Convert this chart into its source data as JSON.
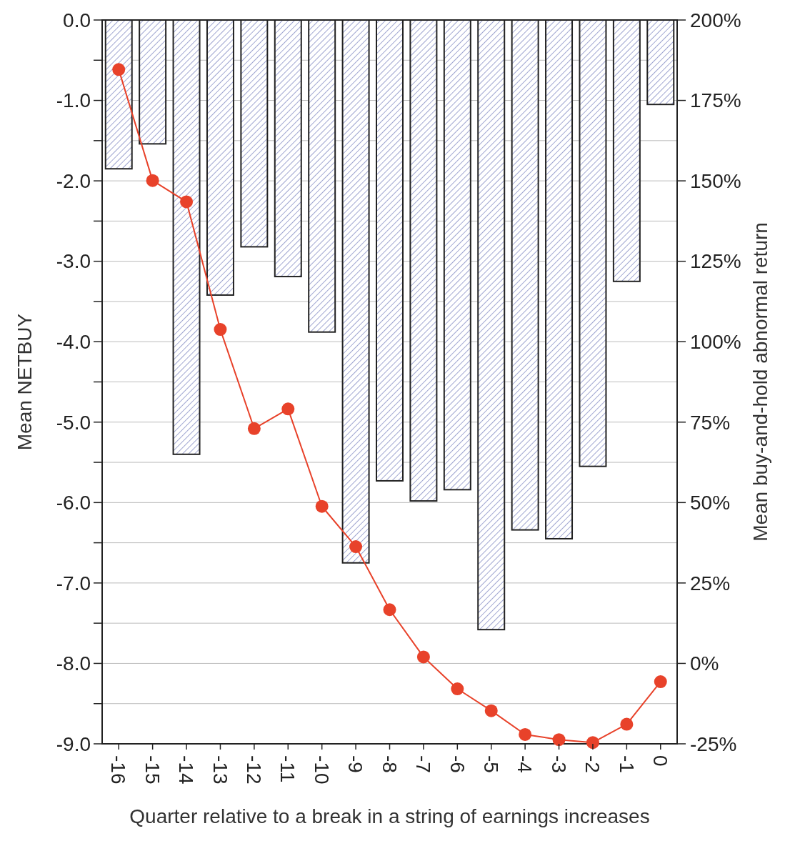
{
  "chart_data": {
    "type": "bar",
    "xlabel": "Quarter relative to a break in a string of earnings increases",
    "ylabel": "Mean NETBUY",
    "y2label": "Mean buy-and-hold abnormal return",
    "categories": [
      "-16",
      "-15",
      "-14",
      "-13",
      "-12",
      "-11",
      "-10",
      "-9",
      "-8",
      "-7",
      "-6",
      "-5",
      "-4",
      "-3",
      "-2",
      "-1",
      "0"
    ],
    "series": [
      {
        "color": "#222222",
        "values": [
          -1.85,
          -1.54,
          -5.4,
          -3.42,
          -2.82,
          -3.19,
          -3.88,
          -6.75,
          -5.73,
          -5.98,
          -5.84,
          -7.58,
          -6.34,
          -6.45,
          -5.55,
          -3.25,
          -1.05
        ]
      },
      {
        "type": "line",
        "axis": "y2",
        "color": "#e8422a",
        "values": [
          184.6,
          150.1,
          143.5,
          103.8,
          73.0,
          79.1,
          48.8,
          36.3,
          16.7,
          2.0,
          -7.9,
          -14.7,
          -22.1,
          -23.7,
          -24.6,
          -18.9,
          -5.7
        ]
      }
    ],
    "ylim": [
      -9,
      0
    ],
    "yticks": [
      {
        "value": 0,
        "label": "0.0"
      },
      {
        "value": -0.5,
        "label": null
      },
      {
        "value": -1,
        "label": "-1.0"
      },
      {
        "value": -1.5,
        "label": null
      },
      {
        "value": -2,
        "label": "-2.0"
      },
      {
        "value": -2.5,
        "label": null
      },
      {
        "value": -3,
        "label": "-3.0"
      },
      {
        "value": -3.5,
        "label": null
      },
      {
        "value": -4,
        "label": "-4.0"
      },
      {
        "value": -4.5,
        "label": null
      },
      {
        "value": -5,
        "label": "-5.0"
      },
      {
        "value": -5.5,
        "label": null
      },
      {
        "value": -6,
        "label": "-6.0"
      },
      {
        "value": -6.5,
        "label": null
      },
      {
        "value": -7,
        "label": "-7.0"
      },
      {
        "value": -7.5,
        "label": null
      },
      {
        "value": -8,
        "label": "-8.0"
      },
      {
        "value": -8.5,
        "label": null
      },
      {
        "value": -9,
        "label": "-9.0"
      }
    ],
    "y2lim": [
      -25,
      200
    ],
    "y2ticks": [
      {
        "value": 200,
        "label": "200%"
      },
      {
        "value": 175,
        "label": "175%"
      },
      {
        "value": 150,
        "label": "150%"
      },
      {
        "value": 125,
        "label": "125%"
      },
      {
        "value": 100,
        "label": "100%"
      },
      {
        "value": 75,
        "label": "75%"
      },
      {
        "value": 50,
        "label": "50%"
      },
      {
        "value": 25,
        "label": "25%"
      },
      {
        "value": 0,
        "label": "0%"
      },
      {
        "value": -25,
        "label": "-25%"
      }
    ],
    "grid": "y",
    "marker": "circle",
    "line_style": "solid"
  }
}
